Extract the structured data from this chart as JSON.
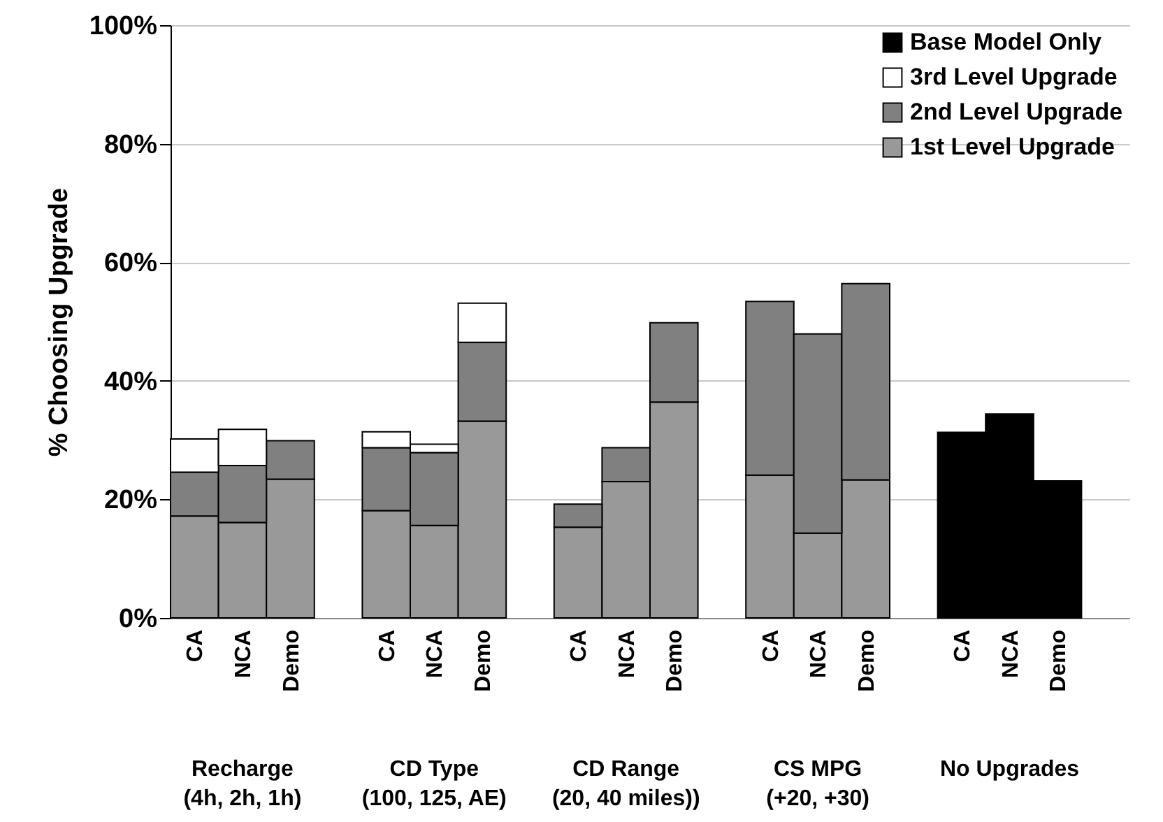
{
  "chart_data": {
    "type": "bar",
    "stacked": true,
    "ylabel": "% Choosing Upgrade",
    "categories": [
      "CA",
      "NCA",
      "Demo",
      "CA",
      "NCA",
      "Demo",
      "CA",
      "NCA",
      "Demo",
      "CA",
      "NCA",
      "Demo",
      "CA",
      "NCA",
      "Demo"
    ],
    "series": [
      {
        "name": "1st Level Upgrade",
        "color": "#999999",
        "values": [
          17.2,
          16.1,
          23.4,
          18.1,
          15.6,
          33.2,
          15.3,
          23.0,
          36.4,
          24.1,
          14.3,
          23.3,
          null,
          null,
          null
        ]
      },
      {
        "name": "2nd Level Upgrade",
        "color": "#808080",
        "values": [
          7.4,
          9.6,
          6.5,
          10.6,
          12.3,
          13.3,
          3.9,
          5.7,
          13.4,
          29.3,
          33.6,
          33.1,
          null,
          null,
          null
        ]
      },
      {
        "name": "3rd Level Upgrade",
        "color": "#ffffff",
        "values": [
          5.6,
          6.1,
          null,
          2.7,
          1.4,
          6.6,
          null,
          null,
          null,
          null,
          null,
          null,
          null,
          null,
          null
        ]
      },
      {
        "name": "Base Model Only",
        "color": "#000000",
        "values": [
          null,
          null,
          null,
          null,
          null,
          null,
          null,
          null,
          null,
          null,
          null,
          null,
          31.3,
          34.4,
          23.1
        ]
      }
    ],
    "ylim": [
      0,
      100
    ],
    "yticks": [
      {
        "value": 0,
        "label": "0%"
      },
      {
        "value": 20,
        "label": "20%"
      },
      {
        "value": 40,
        "label": "40%"
      },
      {
        "value": 60,
        "label": "60%"
      },
      {
        "value": 80,
        "label": "80%"
      },
      {
        "value": 100,
        "label": "100%"
      }
    ],
    "grid": "y",
    "legend": "top right",
    "annotations": [
      "Recharge\n(4h, 2h, 1h)",
      "CD Type\n(100, 125, AE)",
      "CD Range\n(20, 40 miles))",
      "CS MPG\n(+20, +30)",
      "No Upgrades"
    ]
  }
}
